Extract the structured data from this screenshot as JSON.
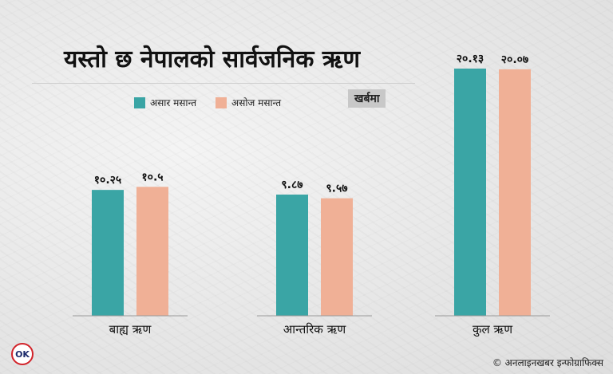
{
  "header": {
    "title": "यस्तो छ नेपालको सार्वजनिक ऋण",
    "unit": "खर्बमा"
  },
  "footer": {
    "logo_text": "OK",
    "credit": "© अनलाइनखबर इन्फोग्राफिक्स"
  },
  "chart_data": {
    "type": "bar",
    "categories": [
      "बाह्य ऋण",
      "आन्तरिक ऋण",
      "कुल ऋण"
    ],
    "series": [
      {
        "name": "असार मसान्त",
        "color": "#3aa5a5",
        "values": [
          10.25,
          9.87,
          20.13
        ],
        "labels": [
          "१०.२५",
          "९.८७",
          "२०.१३"
        ]
      },
      {
        "name": "असोज मसान्त",
        "color": "#f0b096",
        "values": [
          10.5,
          9.57,
          20.07
        ],
        "labels": [
          "१०.५",
          "९.५७",
          "२०.०७"
        ]
      }
    ],
    "ylim": [
      0,
      20.13
    ],
    "grid": false,
    "legend_position": "top-left"
  }
}
